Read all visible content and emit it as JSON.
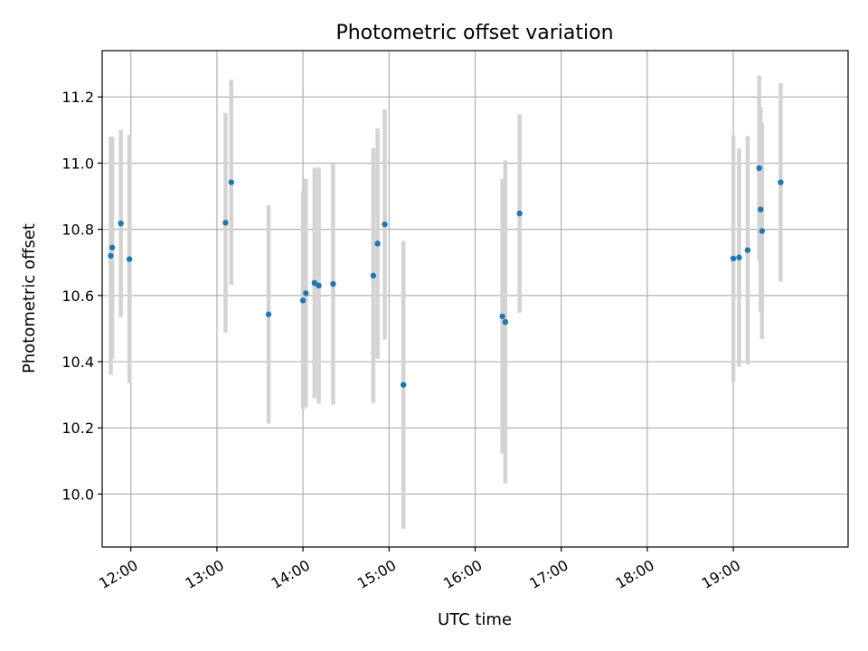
{
  "chart_data": {
    "type": "scatter",
    "title": "Photometric offset variation",
    "xlabel": "UTC time",
    "ylabel": "Photometric offset",
    "x_ticks": [
      "12:00",
      "13:00",
      "14:00",
      "15:00",
      "16:00",
      "17:00",
      "18:00",
      "19:00"
    ],
    "xlim": [
      "11:40",
      "20:20"
    ],
    "ylim": [
      9.84,
      11.34
    ],
    "y_ticks": [
      10.0,
      10.2,
      10.4,
      10.6,
      10.8,
      11.0,
      11.2
    ],
    "y_tick_labels": [
      "10.0",
      "10.2",
      "10.4",
      "10.6",
      "10.8",
      "11.0",
      "11.2"
    ],
    "grid": true,
    "point_color": "#1f77b4",
    "errorbar_color": "#d3d3d3",
    "points": [
      {
        "t": "11:46",
        "y": 10.72,
        "err": 0.36
      },
      {
        "t": "11:47",
        "y": 10.745,
        "err": 0.335
      },
      {
        "t": "11:53",
        "y": 10.818,
        "err": 0.283
      },
      {
        "t": "11:59",
        "y": 10.71,
        "err": 0.375
      },
      {
        "t": "13:06",
        "y": 10.82,
        "err": 0.332
      },
      {
        "t": "13:10",
        "y": 10.942,
        "err": 0.31
      },
      {
        "t": "13:36",
        "y": 10.543,
        "err": 0.33
      },
      {
        "t": "14:00",
        "y": 10.585,
        "err": 0.33
      },
      {
        "t": "14:02",
        "y": 10.607,
        "err": 0.345
      },
      {
        "t": "14:08",
        "y": 10.638,
        "err": 0.348
      },
      {
        "t": "14:11",
        "y": 10.63,
        "err": 0.357
      },
      {
        "t": "14:21",
        "y": 10.635,
        "err": 0.365
      },
      {
        "t": "14:49",
        "y": 10.66,
        "err": 0.385
      },
      {
        "t": "14:52",
        "y": 10.757,
        "err": 0.348
      },
      {
        "t": "14:57",
        "y": 10.815,
        "err": 0.348
      },
      {
        "t": "15:10",
        "y": 10.33,
        "err": 0.435
      },
      {
        "t": "16:19",
        "y": 10.537,
        "err": 0.415
      },
      {
        "t": "16:21",
        "y": 10.52,
        "err": 0.488
      },
      {
        "t": "16:31",
        "y": 10.848,
        "err": 0.3
      },
      {
        "t": "19:00",
        "y": 10.712,
        "err": 0.372
      },
      {
        "t": "19:04",
        "y": 10.715,
        "err": 0.33
      },
      {
        "t": "19:10",
        "y": 10.737,
        "err": 0.345
      },
      {
        "t": "19:18",
        "y": 10.985,
        "err": 0.28
      },
      {
        "t": "19:19",
        "y": 10.86,
        "err": 0.31
      },
      {
        "t": "19:20",
        "y": 10.795,
        "err": 0.327
      },
      {
        "t": "19:33",
        "y": 10.942,
        "err": 0.3
      }
    ]
  }
}
